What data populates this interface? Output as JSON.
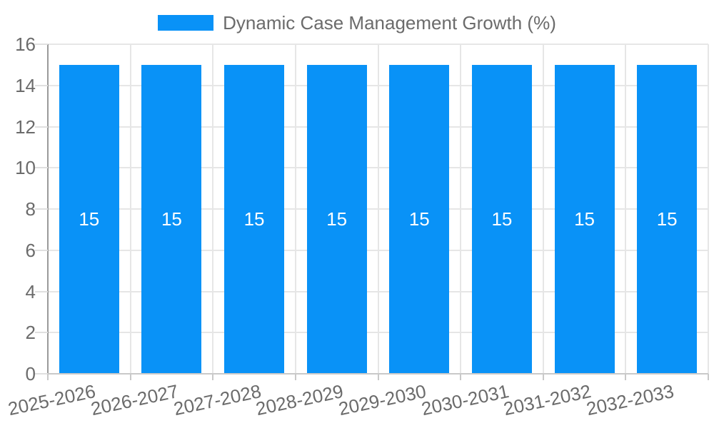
{
  "legend": {
    "label": "Dynamic Case Management Growth (%)"
  },
  "chart_data": {
    "type": "bar",
    "title": "Dynamic Case Management Growth (%)",
    "categories": [
      "2025-2026",
      "2026-2027",
      "2027-2028",
      "2028-2029",
      "2029-2030",
      "2030-2031",
      "2031-2032",
      "2032-2033"
    ],
    "series": [
      {
        "name": "Dynamic Case Management Growth (%)",
        "values": [
          15,
          15,
          15,
          15,
          15,
          15,
          15,
          15
        ]
      }
    ],
    "values": [
      15,
      15,
      15,
      15,
      15,
      15,
      15,
      15
    ],
    "bar_value_labels": [
      "15",
      "15",
      "15",
      "15",
      "15",
      "15",
      "15",
      "15"
    ],
    "xlabel": "",
    "ylabel": "",
    "ylim": [
      0,
      16
    ],
    "yticks": [
      0,
      2,
      4,
      6,
      8,
      10,
      12,
      14,
      16
    ],
    "grid": true,
    "legend_position": "top"
  },
  "colors": {
    "bar": "#0992f7",
    "bar_label": "#ffffff",
    "text": "#6b6b6b",
    "grid": "#e6e6e6",
    "y_axis_line": "#9a9a9a",
    "x_axis_line": "#c9c9c9",
    "y_tick": "#e0e0e0",
    "x_tick": "#c9c9c9",
    "background": "#ffffff"
  }
}
